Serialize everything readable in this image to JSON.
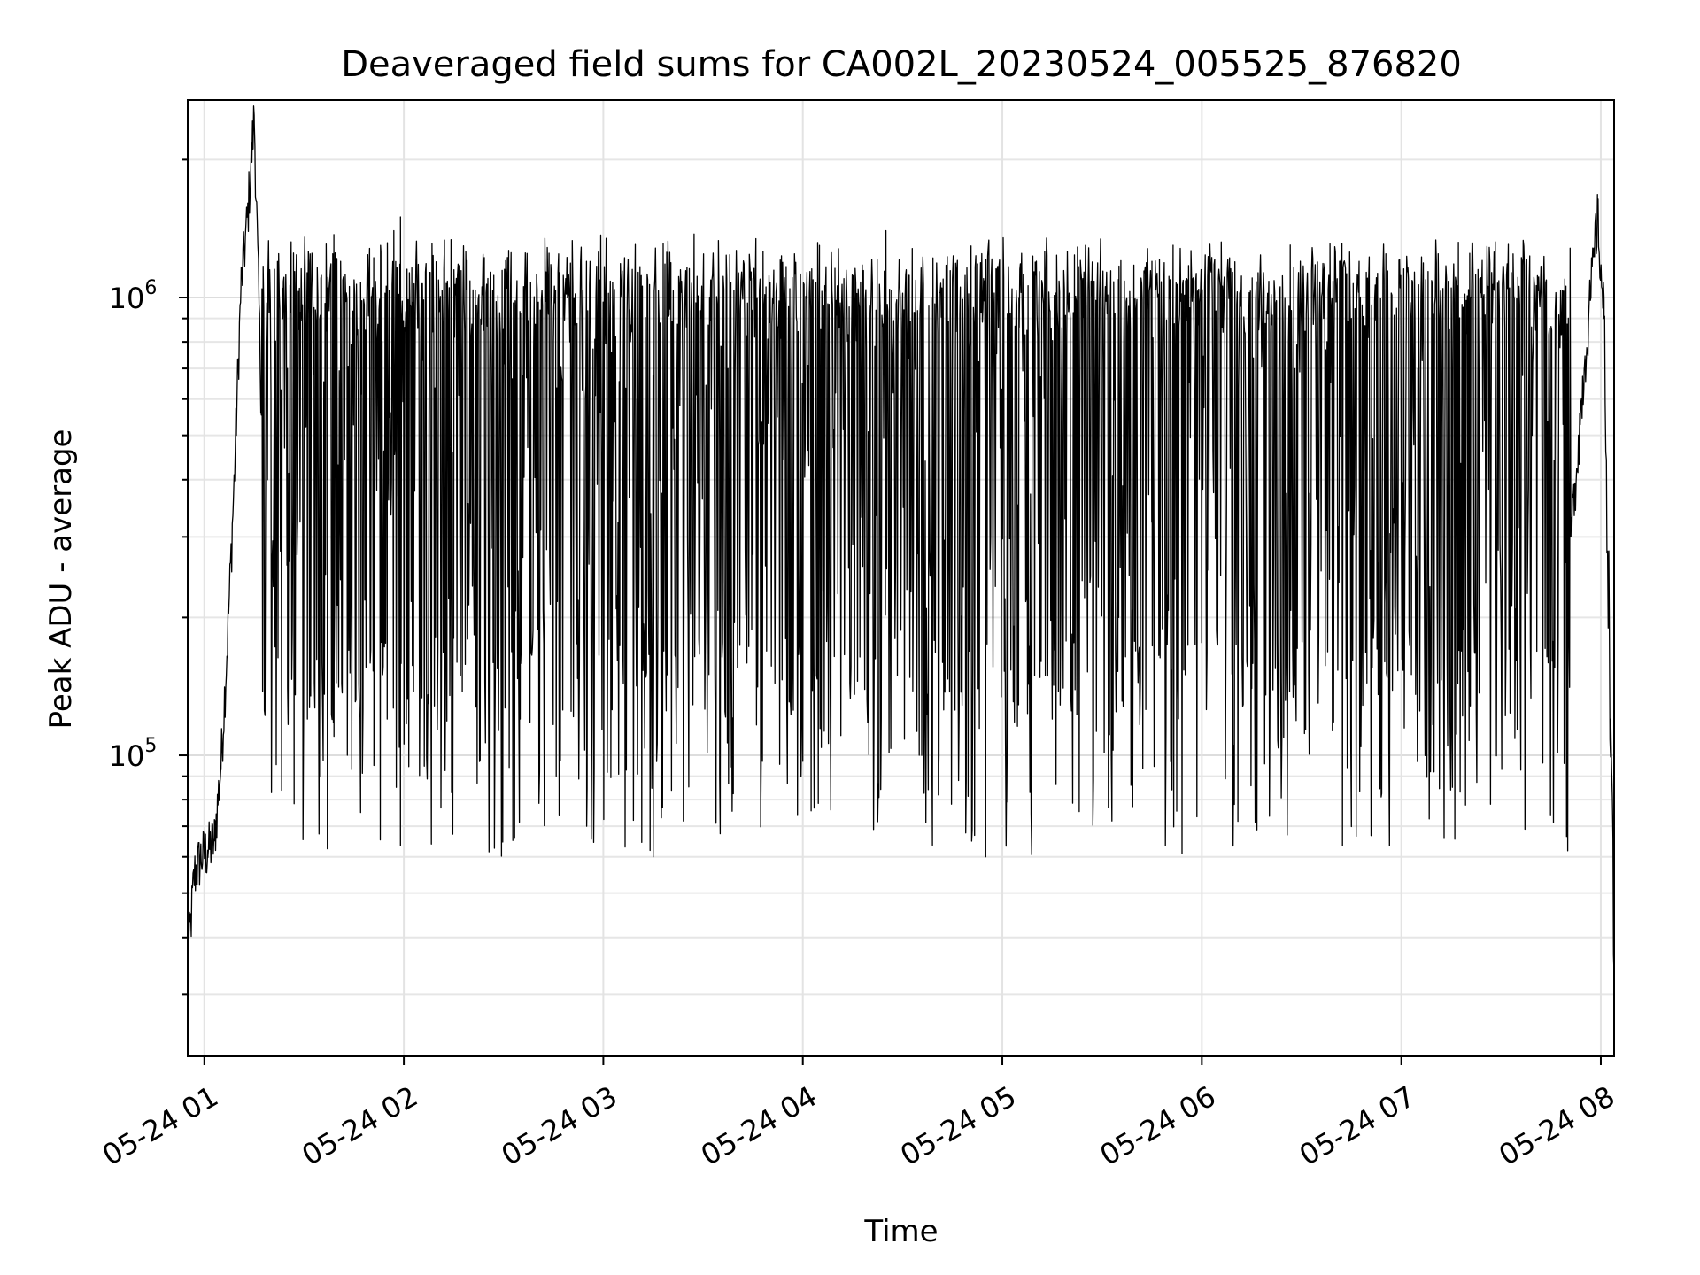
{
  "chart_data": {
    "type": "line",
    "title": "Deaveraged field sums for CA002L_20230524_005525_876820",
    "xlabel": "Time",
    "ylabel": "Peak ADU - average",
    "x_axis": {
      "type": "datetime",
      "range": [
        "2023-05-24 00:55",
        "2023-05-24 08:04"
      ],
      "tick_values": [
        "2023-05-24 01:00",
        "2023-05-24 02:00",
        "2023-05-24 03:00",
        "2023-05-24 04:00",
        "2023-05-24 05:00",
        "2023-05-24 06:00",
        "2023-05-24 07:00",
        "2023-05-24 08:00"
      ],
      "tick_labels": [
        "05-24 01",
        "05-24 02",
        "05-24 03",
        "05-24 04",
        "05-24 05",
        "05-24 06",
        "05-24 07",
        "05-24 08"
      ]
    },
    "y_axis": {
      "scale": "log",
      "range": [
        22000,
        2700000
      ],
      "major_ticks": [
        100000,
        1000000
      ],
      "major_tick_labels": [
        {
          "base": "10",
          "exp": "5"
        },
        {
          "base": "10",
          "exp": "6"
        }
      ]
    },
    "grid": true,
    "line_color": "#000000",
    "series": [
      {
        "x": [
          "2023-05-24 00:55",
          "2023-05-24 00:57",
          "2023-05-24 00:59",
          "2023-05-24 01:01",
          "2023-05-24 01:03",
          "2023-05-24 01:05",
          "2023-05-24 01:07",
          "2023-05-24 01:09",
          "2023-05-24 01:11",
          "2023-05-24 01:13",
          "2023-05-24 01:15",
          "2023-05-24 01:17",
          "2023-05-24 01:19",
          "2023-05-24 01:21",
          "2023-05-24 01:23",
          "2023-05-24 01:25",
          "2023-05-24 01:27",
          "2023-05-24 01:29",
          "2023-05-24 01:31",
          "2023-05-24 01:33",
          "2023-05-24 01:35",
          "2023-05-24 01:37",
          "2023-05-24 01:39",
          "2023-05-24 01:41",
          "2023-05-24 01:43",
          "2023-05-24 01:45",
          "2023-05-24 01:47",
          "2023-05-24 01:49",
          "2023-05-24 01:51",
          "2023-05-24 01:53",
          "2023-05-24 01:55",
          "2023-05-24 01:57",
          "2023-05-24 01:59",
          "2023-05-24 02:05",
          "2023-05-24 02:15",
          "2023-05-24 02:25",
          "2023-05-24 02:35",
          "2023-05-24 02:45",
          "2023-05-24 02:55",
          "2023-05-24 03:05",
          "2023-05-24 03:15",
          "2023-05-24 03:25",
          "2023-05-24 03:35",
          "2023-05-24 03:45",
          "2023-05-24 03:55",
          "2023-05-24 04:05",
          "2023-05-24 04:15",
          "2023-05-24 04:25",
          "2023-05-24 04:35",
          "2023-05-24 04:45",
          "2023-05-24 04:55",
          "2023-05-24 05:05",
          "2023-05-24 05:15",
          "2023-05-24 05:25",
          "2023-05-24 05:35",
          "2023-05-24 05:45",
          "2023-05-24 05:55",
          "2023-05-24 06:05",
          "2023-05-24 06:15",
          "2023-05-24 06:25",
          "2023-05-24 06:35",
          "2023-05-24 06:45",
          "2023-05-24 06:55",
          "2023-05-24 07:05",
          "2023-05-24 07:15",
          "2023-05-24 07:25",
          "2023-05-24 07:35",
          "2023-05-24 07:45",
          "2023-05-24 07:51",
          "2023-05-24 07:55",
          "2023-05-24 07:59",
          "2023-05-24 08:01",
          "2023-05-24 08:03",
          "2023-05-24 08:04"
        ],
        "values": [
          35000,
          55000,
          60000,
          62000,
          65000,
          95000,
          180000,
          400000,
          1050000,
          1500000,
          2500000,
          650000,
          400000,
          550000,
          300000,
          700000,
          150000,
          900000,
          120000,
          950000,
          90000,
          1050000,
          110000,
          1200000,
          100000,
          1000000,
          75000,
          1100000,
          95000,
          1300000,
          120000,
          1400000,
          1500000,
          700000,
          180000,
          1000000,
          120000,
          800000,
          70000,
          700000,
          60000,
          1000000,
          90000,
          1100000,
          200000,
          1300000,
          300000,
          1400000,
          100000,
          1100000,
          60000,
          1000000,
          120000,
          1300000,
          200000,
          1200000,
          150000,
          1100000,
          140000,
          1000000,
          130000,
          900000,
          160000,
          700000,
          110000,
          700000,
          200000,
          350000,
          300000,
          700000,
          1500000,
          900000,
          120000,
          32000
        ]
      }
    ]
  }
}
